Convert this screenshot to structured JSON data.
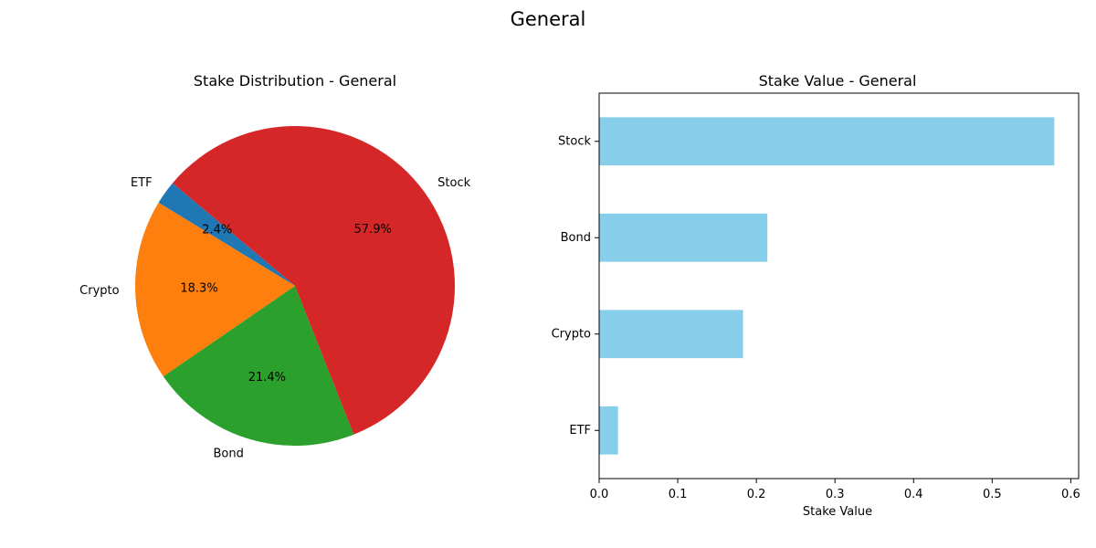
{
  "figure": {
    "suptitle": "General"
  },
  "chart_data": [
    {
      "type": "pie",
      "title": "Stake Distribution - General",
      "categories": [
        "ETF",
        "Crypto",
        "Bond",
        "Stock"
      ],
      "values": [
        2.4,
        18.3,
        21.4,
        57.9
      ],
      "labels": [
        "2.4%",
        "18.3%",
        "21.4%",
        "57.9%"
      ],
      "colors": [
        "#1f77b4",
        "#ff7f0e",
        "#2ca02c",
        "#d62728"
      ],
      "start_angle_deg": 140,
      "direction": "counterclockwise"
    },
    {
      "type": "bar",
      "orientation": "horizontal",
      "title": "Stake Value - General",
      "categories": [
        "ETF",
        "Crypto",
        "Bond",
        "Stock"
      ],
      "values": [
        0.024,
        0.183,
        0.214,
        0.579
      ],
      "xlabel": "Stake Value",
      "ylabel": "",
      "xlim": [
        0,
        0.61
      ],
      "xticks": [
        0.0,
        0.1,
        0.2,
        0.3,
        0.4,
        0.5,
        0.6
      ],
      "xtick_labels": [
        "0.0",
        "0.1",
        "0.2",
        "0.3",
        "0.4",
        "0.5",
        "0.6"
      ],
      "bar_color": "#87ceeb",
      "grid": false
    }
  ]
}
